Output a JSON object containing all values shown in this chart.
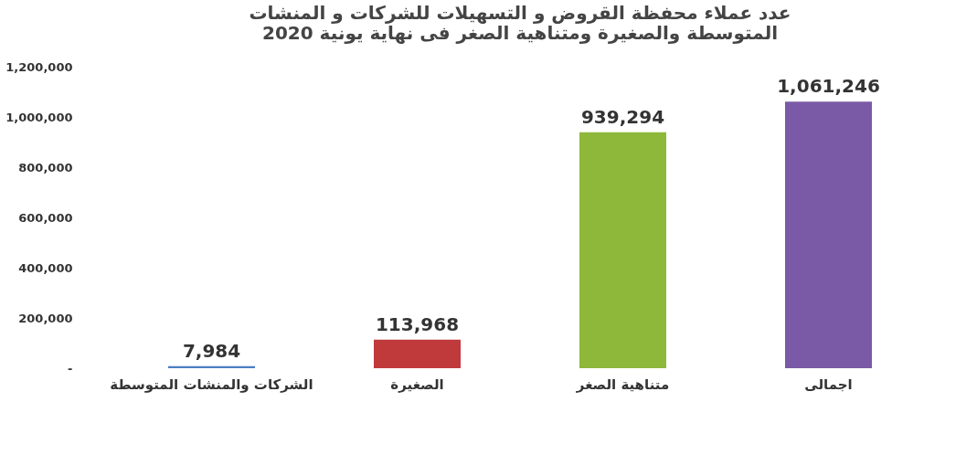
{
  "chart_data": {
    "type": "bar",
    "title": [
      "عدد عملاء محفظة القروض و التسهيلات للشركات و المنشات",
      "المتوسطة والصغيرة ومتناهية  الصغر فى نهاية يونية 2020"
    ],
    "categories": [
      "الشركات والمنشات المتوسطة",
      "الصغيرة",
      "متناهية الصغر",
      "اجمالى"
    ],
    "values": [
      7984,
      113968,
      939294,
      1061246
    ],
    "colors": [
      "#4a7fc1",
      "#c0393b",
      "#8db83a",
      "#7a5aa6"
    ],
    "ylim": [
      0,
      1200000
    ],
    "value_labels": [
      "7,984",
      "113,968",
      "939,294",
      "1,061,246"
    ],
    "yticks": [
      {
        "value": 0,
        "label": "-"
      },
      {
        "value": 200000,
        "label": "200,000"
      },
      {
        "value": 400000,
        "label": "400,000"
      },
      {
        "value": 600000,
        "label": "600,000"
      },
      {
        "value": 800000,
        "label": "800,000"
      },
      {
        "value": 1000000,
        "label": "1,000,000"
      },
      {
        "value": 1200000,
        "label": "1,200,000"
      }
    ],
    "grid": false
  }
}
